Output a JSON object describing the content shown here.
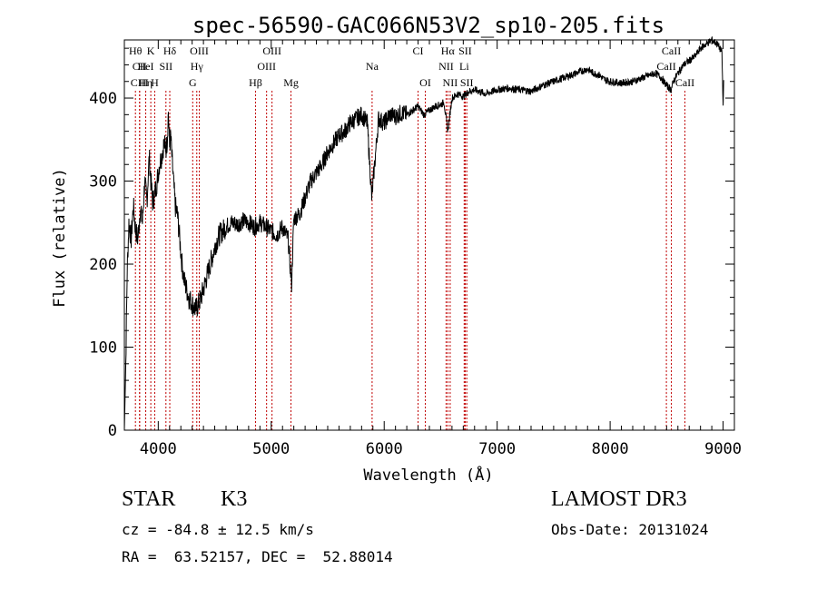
{
  "chart_data": {
    "type": "line",
    "title": "spec-56590-GAC066N53V2_sp10-205.fits",
    "xlabel": "Wavelength (Å)",
    "ylabel": "Flux (relative)",
    "xlim": [
      3700,
      9100
    ],
    "ylim": [
      0,
      470
    ],
    "xticks": [
      4000,
      5000,
      6000,
      7000,
      8000,
      9000
    ],
    "yticks": [
      0,
      100,
      200,
      300,
      400
    ],
    "grid": false,
    "series": [
      {
        "x": [
          3700,
          3710,
          3725,
          3740,
          3760,
          3780,
          3800,
          3820,
          3840,
          3860,
          3880,
          3900,
          3920,
          3935,
          3950,
          3970,
          3990,
          4010,
          4030,
          4050,
          4070,
          4080,
          4090,
          4100,
          4110,
          4120,
          4135,
          4150,
          4170,
          4190,
          4210,
          4230,
          4250,
          4270,
          4290,
          4310,
          4330,
          4350,
          4380,
          4400,
          4420,
          4450,
          4480,
          4510,
          4540,
          4570,
          4600,
          4650,
          4700,
          4750,
          4800,
          4850,
          4900,
          4950,
          5000,
          5050,
          5100,
          5150,
          5180,
          5200,
          5250,
          5300,
          5350,
          5400,
          5450,
          5500,
          5550,
          5600,
          5650,
          5700,
          5750,
          5800,
          5850,
          5890,
          5950,
          6000,
          6050,
          6100,
          6150,
          6200,
          6250,
          6300,
          6350,
          6400,
          6450,
          6500,
          6530,
          6563,
          6600,
          6650,
          6700,
          6750,
          6800,
          6900,
          7000,
          7100,
          7200,
          7300,
          7400,
          7500,
          7600,
          7700,
          7800,
          7850,
          7900,
          7950,
          8000,
          8100,
          8200,
          8300,
          8400,
          8450,
          8500,
          8540,
          8560,
          8600,
          8650,
          8700,
          8750,
          8800,
          8850,
          8900,
          8950,
          8990,
          9000,
          9005
        ],
        "y": [
          0,
          60,
          190,
          250,
          230,
          270,
          240,
          230,
          265,
          250,
          300,
          275,
          330,
          300,
          275,
          285,
          300,
          320,
          330,
          345,
          340,
          350,
          385,
          340,
          355,
          330,
          300,
          270,
          260,
          230,
          200,
          180,
          170,
          160,
          155,
          150,
          145,
          150,
          160,
          170,
          180,
          195,
          210,
          225,
          235,
          240,
          245,
          250,
          248,
          252,
          250,
          245,
          250,
          245,
          240,
          235,
          245,
          230,
          175,
          255,
          260,
          280,
          300,
          310,
          320,
          335,
          345,
          355,
          360,
          370,
          375,
          380,
          370,
          280,
          375,
          370,
          380,
          378,
          382,
          380,
          385,
          390,
          380,
          385,
          390,
          392,
          395,
          360,
          400,
          405,
          402,
          408,
          410,
          405,
          410,
          412,
          410,
          408,
          415,
          420,
          425,
          430,
          435,
          430,
          428,
          422,
          420,
          418,
          420,
          425,
          430,
          425,
          415,
          410,
          420,
          430,
          440,
          445,
          450,
          460,
          465,
          470,
          465,
          455,
          390,
          420
        ]
      }
    ],
    "lines": [
      {
        "label": "Hθ",
        "x": 3798,
        "row": 0
      },
      {
        "label": "CII",
        "x": 3835,
        "row": 1
      },
      {
        "label": "CIII",
        "x": 3835,
        "row": 2
      },
      {
        "label": "K",
        "x": 3934,
        "row": 0
      },
      {
        "label": "HeI",
        "x": 3889,
        "row": 1
      },
      {
        "label": "Hη",
        "x": 3889,
        "row": 2
      },
      {
        "label": "SII",
        "x": 4068,
        "row": 1
      },
      {
        "label": "H",
        "x": 3969,
        "row": 2
      },
      {
        "label": "Hδ",
        "x": 4102,
        "row": 0
      },
      {
        "label": "OIII",
        "x": 4363,
        "row": 0
      },
      {
        "label": "Hγ",
        "x": 4341,
        "row": 1
      },
      {
        "label": "G",
        "x": 4305,
        "row": 2
      },
      {
        "label": "OIII",
        "x": 5007,
        "row": 0
      },
      {
        "label": "OIII",
        "x": 4959,
        "row": 1
      },
      {
        "label": "Hβ",
        "x": 4861,
        "row": 2
      },
      {
        "label": "Mg",
        "x": 5175,
        "row": 2
      },
      {
        "label": "Na",
        "x": 5893,
        "row": 1
      },
      {
        "label": "CI",
        "x": 6300,
        "row": 0
      },
      {
        "label": "OI",
        "x": 6364,
        "row": 2
      },
      {
        "label": "Hα",
        "x": 6563,
        "row": 0
      },
      {
        "label": "NII",
        "x": 6548,
        "row": 1
      },
      {
        "label": "NII",
        "x": 6584,
        "row": 2
      },
      {
        "label": "SII",
        "x": 6717,
        "row": 0
      },
      {
        "label": "Li",
        "x": 6708,
        "row": 1
      },
      {
        "label": "SII",
        "x": 6731,
        "row": 2
      },
      {
        "label": "CaII",
        "x": 8542,
        "row": 0
      },
      {
        "label": "CaII",
        "x": 8498,
        "row": 1
      },
      {
        "label": "CaII",
        "x": 8662,
        "row": 2
      }
    ]
  },
  "info": {
    "class": "STAR",
    "subclass": "K3",
    "survey": "LAMOST DR3",
    "cz": "cz = -84.8 ± 12.5 km/s",
    "obs_date": "Obs-Date: 20131024",
    "radec": "RA =  63.52157, DEC =  52.88014"
  }
}
